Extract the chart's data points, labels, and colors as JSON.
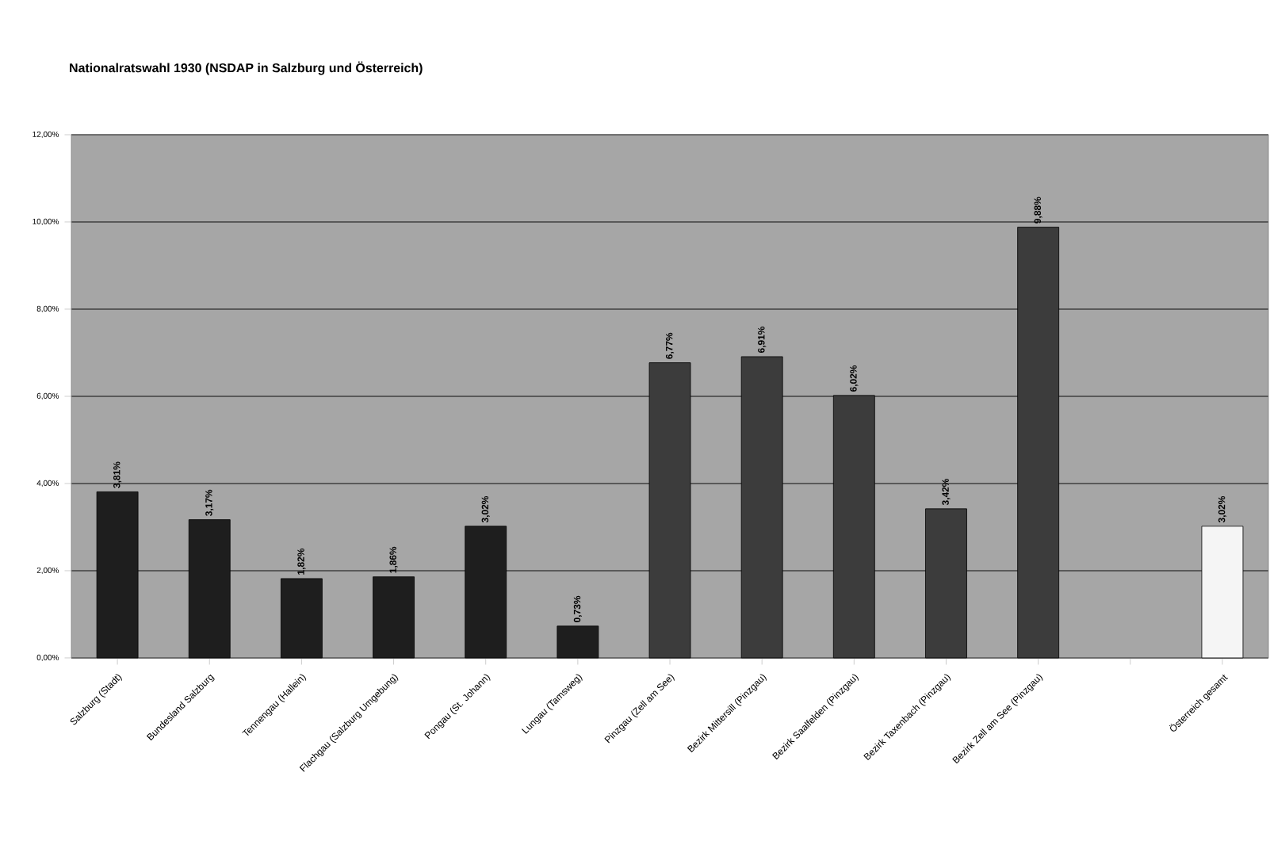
{
  "chart_data": {
    "type": "bar",
    "title": "Nationalratswahl 1930 (NSDAP in Salzburg und Österreich)",
    "categories": [
      "Salzburg (Stadt)",
      "Bundesland Salzburg",
      "Tennengau (Hallein)",
      "Flachgau (Salzburg Umgebung)",
      "Pongau (St. Johann)",
      "Lungau (Tamsweg)",
      "Pinzgau (Zell am See)",
      "Bezirk Mittersill (Pinzgau)",
      "Bezirk Saalfelden (Pinzgau)",
      "Bezirk Taxenbach (Pinzgau)",
      "Bezirk Zell am See (Pinzgau)",
      null,
      "Österreich gesamt"
    ],
    "values": [
      3.81,
      3.17,
      1.82,
      1.86,
      3.02,
      0.73,
      6.77,
      6.91,
      6.02,
      3.42,
      9.88,
      null,
      3.02
    ],
    "value_labels": [
      "3,81%",
      "3,17%",
      "1,82%",
      "1,86%",
      "3,02%",
      "0,73%",
      "6,77%",
      "6,91%",
      "6,02%",
      "3,42%",
      "9,88%",
      null,
      "3,02%"
    ],
    "colors": [
      "#1e1e1e",
      "#1e1e1e",
      "#1e1e1e",
      "#1e1e1e",
      "#1e1e1e",
      "#1e1e1e",
      "#3c3c3c",
      "#3c3c3c",
      "#3c3c3c",
      "#3c3c3c",
      "#3c3c3c",
      "#3c3c3c",
      "#f5f5f5"
    ],
    "ylim": [
      0,
      12
    ],
    "yticks": [
      {
        "value": 0,
        "label": "0,00%"
      },
      {
        "value": 2,
        "label": "2,00%"
      },
      {
        "value": 4,
        "label": "4,00%"
      },
      {
        "value": 6,
        "label": "6,00%"
      },
      {
        "value": 8,
        "label": "8,00%"
      },
      {
        "value": 10,
        "label": "10,00%"
      },
      {
        "value": 12,
        "label": "12,00%"
      }
    ],
    "grid": "y"
  }
}
